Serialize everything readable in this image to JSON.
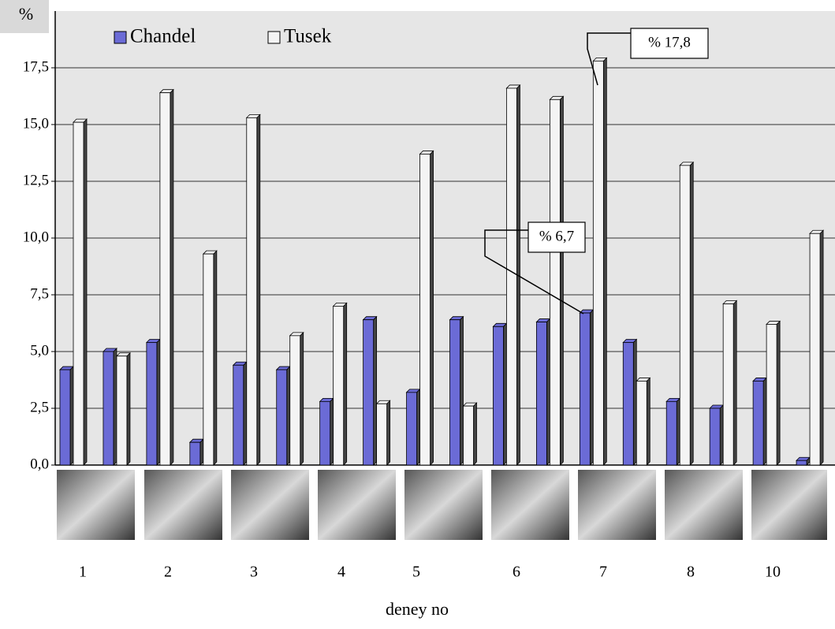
{
  "chart_data": {
    "type": "bar",
    "y_label": "%",
    "x_label": "deney no",
    "categories": [
      null,
      null,
      null,
      null,
      null,
      null,
      null,
      null,
      null,
      null,
      null,
      null,
      null,
      null,
      null,
      null,
      null,
      null
    ],
    "series": [
      {
        "name": "Chandel",
        "color": "#6b6bd6",
        "values": [
          4.2,
          5.0,
          5.4,
          1.0,
          4.4,
          4.2,
          2.8,
          6.4,
          3.2,
          6.4,
          6.1,
          6.3,
          6.7,
          5.4,
          2.8,
          2.5,
          3.7,
          0.2
        ]
      },
      {
        "name": "Tusek",
        "color": "#f4f4f4",
        "values": [
          15.1,
          4.8,
          16.4,
          9.3,
          15.3,
          5.7,
          7.0,
          2.7,
          13.7,
          2.6,
          16.6,
          16.1,
          17.8,
          3.7,
          13.2,
          7.1,
          6.2,
          10.2
        ]
      }
    ],
    "ylim": [
      0,
      20
    ],
    "yticks": [
      {
        "value": 0,
        "label": "0,0"
      },
      {
        "value": 2.5,
        "label": "2,5"
      },
      {
        "value": 5,
        "label": "5,0"
      },
      {
        "value": 7.5,
        "label": "7,5"
      },
      {
        "value": 10,
        "label": "10,0"
      },
      {
        "value": 12.5,
        "label": "12,5"
      },
      {
        "value": 15,
        "label": "15,0"
      },
      {
        "value": 17.5,
        "label": "17,5"
      }
    ],
    "grid": true,
    "annotations": [
      "% 17,8",
      "% 6,7"
    ],
    "sample_labels": [
      "1",
      "2",
      "3",
      "4",
      "5",
      "6",
      "7",
      "8",
      "10"
    ]
  }
}
